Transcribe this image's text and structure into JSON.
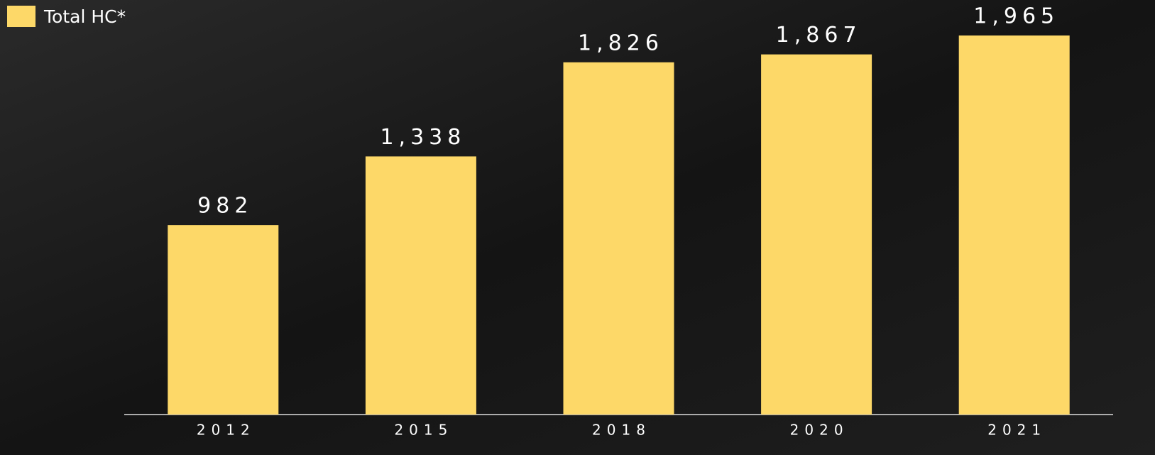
{
  "chart_data": {
    "type": "bar",
    "categories": [
      "2012",
      "2015",
      "2018",
      "2020",
      "2021"
    ],
    "series": [
      {
        "name": "Total HC*",
        "color": "#fdd868",
        "values": [
          982,
          1338,
          1826,
          1867,
          1965
        ],
        "value_labels": [
          "982",
          "1,338",
          "1,826",
          "1,867",
          "1,965"
        ]
      }
    ]
  }
}
